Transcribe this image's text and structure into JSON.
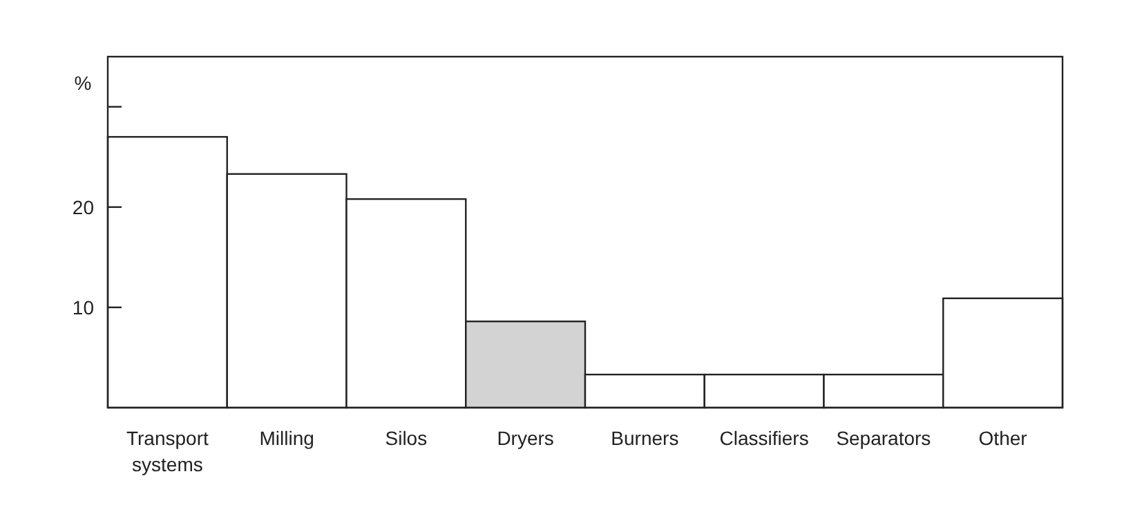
{
  "chart_data": {
    "type": "bar",
    "ylabel": "%",
    "categories": [
      "Transport\nsystems",
      "Milling",
      "Silos",
      "Dryers",
      "Burners",
      "Classifiers",
      "Separators",
      "Other"
    ],
    "values": [
      27,
      23.3,
      20.8,
      8.6,
      3.3,
      3.3,
      3.3,
      10.9
    ],
    "colors": [
      "#ffffff",
      "#ffffff",
      "#ffffff",
      "#d3d3d3",
      "#ffffff",
      "#ffffff",
      "#ffffff",
      "#ffffff"
    ],
    "ylim": [
      0,
      35
    ],
    "yticks": [
      10,
      20,
      {
        "value": 30,
        "label": null
      }
    ],
    "grid": false
  }
}
